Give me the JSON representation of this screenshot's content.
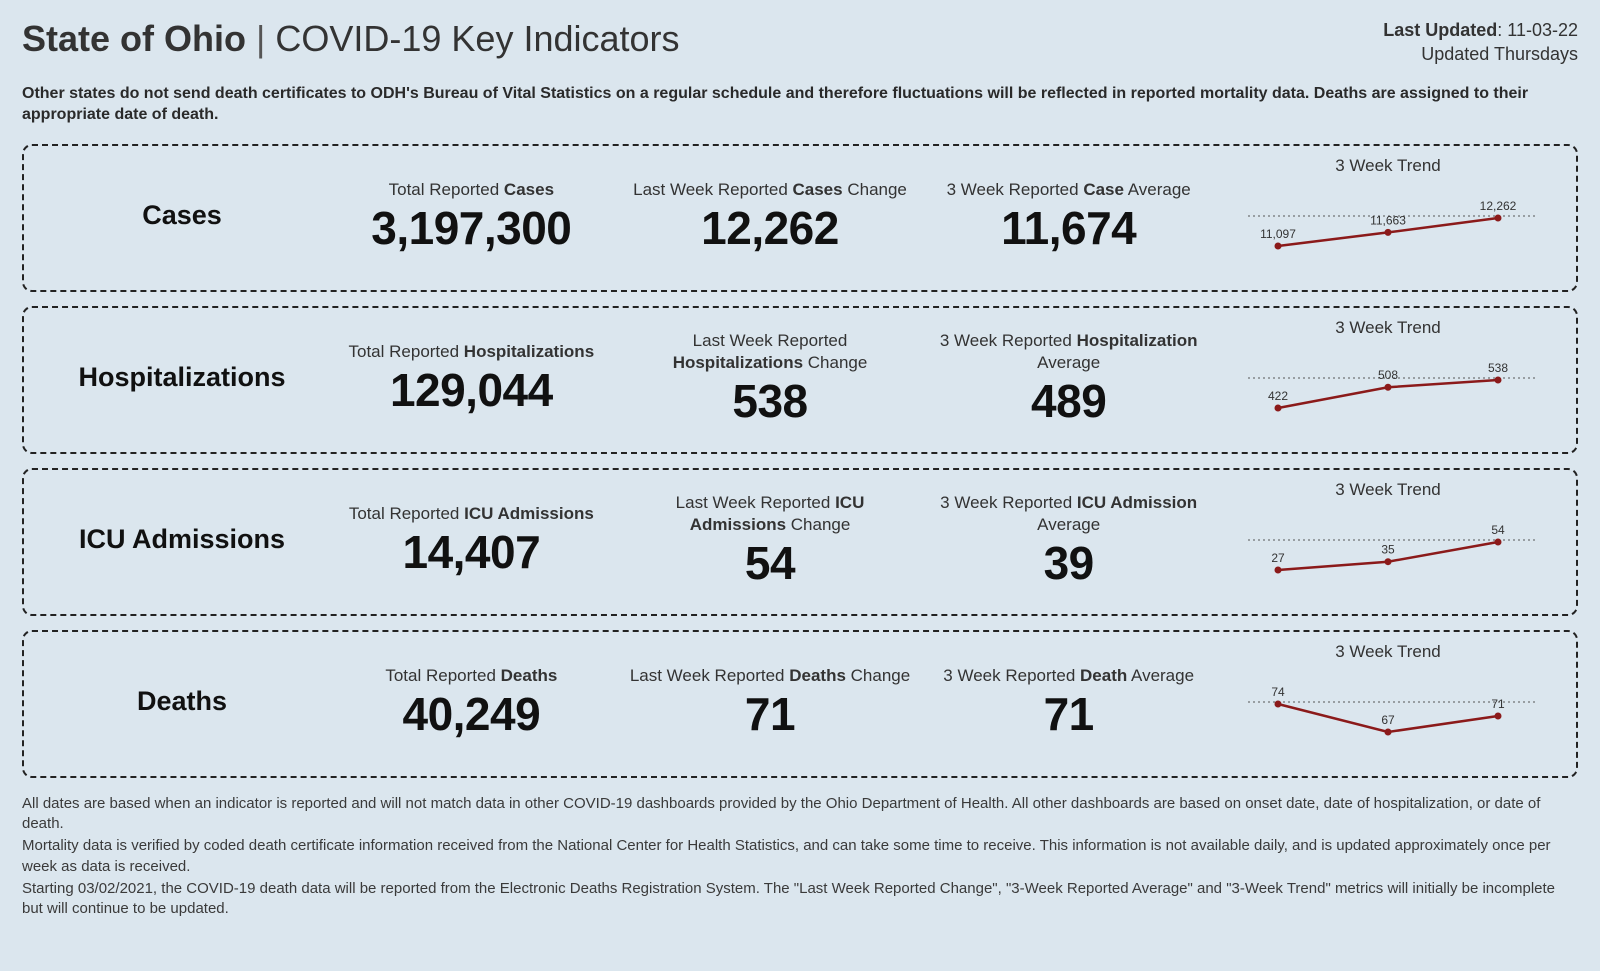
{
  "header": {
    "title_bold": "State of Ohio",
    "title_rest": "COVID-19 Key Indicators",
    "last_updated_label": "Last Updated",
    "last_updated_value": "11-03-22",
    "cadence": "Updated Thursdays"
  },
  "topnote": "Other states do not send death certificates to ODH's Bureau of Vital Statistics on a regular schedule and therefore fluctuations will be reflected in reported mortality data. Deaths are assigned to their appropriate date of death.",
  "trend_label": "3 Week Trend",
  "chart_style": {
    "line_color": "#8b1a1a",
    "point_color": "#8b1a1a",
    "dotted_color": "#555555",
    "background": "#dbe6ee",
    "label_fontsize": 12
  },
  "rows": [
    {
      "id": "cases",
      "name": "Cases",
      "metrics": [
        {
          "label_pre": "Total Reported ",
          "label_bold": "Cases",
          "label_post": "",
          "value": "3,197,300"
        },
        {
          "label_pre": "Last Week Reported ",
          "label_bold": "Cases",
          "label_post": " Change",
          "value": "12,262"
        },
        {
          "label_pre": "3 Week Reported ",
          "label_bold": "Case",
          "label_post": " Average",
          "value": "11,674"
        }
      ],
      "trend": {
        "points": [
          11097,
          11663,
          12262
        ],
        "labels": [
          "11,097",
          "11,663",
          "12,262"
        ]
      }
    },
    {
      "id": "hospitalizations",
      "name": "Hospitalizations",
      "metrics": [
        {
          "label_pre": "Total Reported ",
          "label_bold": "Hospitalizations",
          "label_post": "",
          "value": "129,044"
        },
        {
          "label_pre": "Last Week Reported ",
          "label_bold": "Hospitalizations",
          "label_post": " Change",
          "value": "538"
        },
        {
          "label_pre": "3 Week Reported ",
          "label_bold": "Hospitalization",
          "label_post": " Average",
          "value": "489"
        }
      ],
      "trend": {
        "points": [
          422,
          508,
          538
        ],
        "labels": [
          "422",
          "508",
          "538"
        ]
      }
    },
    {
      "id": "icu",
      "name": "ICU Admissions",
      "metrics": [
        {
          "label_pre": "Total Reported ",
          "label_bold": "ICU Admissions",
          "label_post": "",
          "value": "14,407"
        },
        {
          "label_pre": "Last Week Reported ",
          "label_bold": "ICU Admissions",
          "label_post": " Change",
          "value": "54"
        },
        {
          "label_pre": "3 Week Reported ",
          "label_bold": "ICU Admission",
          "label_post": " Average",
          "value": "39"
        }
      ],
      "trend": {
        "points": [
          27,
          35,
          54
        ],
        "labels": [
          "27",
          "35",
          "54"
        ]
      }
    },
    {
      "id": "deaths",
      "name": "Deaths",
      "metrics": [
        {
          "label_pre": "Total Reported ",
          "label_bold": "Deaths",
          "label_post": "",
          "value": "40,249"
        },
        {
          "label_pre": "Last Week Reported ",
          "label_bold": "Deaths",
          "label_post": " Change",
          "value": "71"
        },
        {
          "label_pre": "3 Week Reported ",
          "label_bold": "Death",
          "label_post": " Average",
          "value": "71"
        }
      ],
      "trend": {
        "points": [
          74,
          67,
          71
        ],
        "labels": [
          "74",
          "67",
          "71"
        ]
      }
    }
  ],
  "footer": {
    "p1": "All dates are based when an indicator is reported and will not match data in other COVID-19 dashboards provided by the Ohio Department of Health. All other dashboards are based on onset date, date of hospitalization, or date of death.",
    "p2": "Mortality data is verified by coded death certificate information received from the National Center for Health Statistics, and can take some time to receive. This information is not available daily, and is updated approximately once per week as data is received.",
    "p3": "Starting 03/02/2021, the COVID-19 death data will be reported from the Electronic Deaths Registration System. The \"Last Week Reported Change\", \"3-Week Reported Average\" and \"3-Week Trend\" metrics will initially be incomplete but will continue to be updated."
  }
}
